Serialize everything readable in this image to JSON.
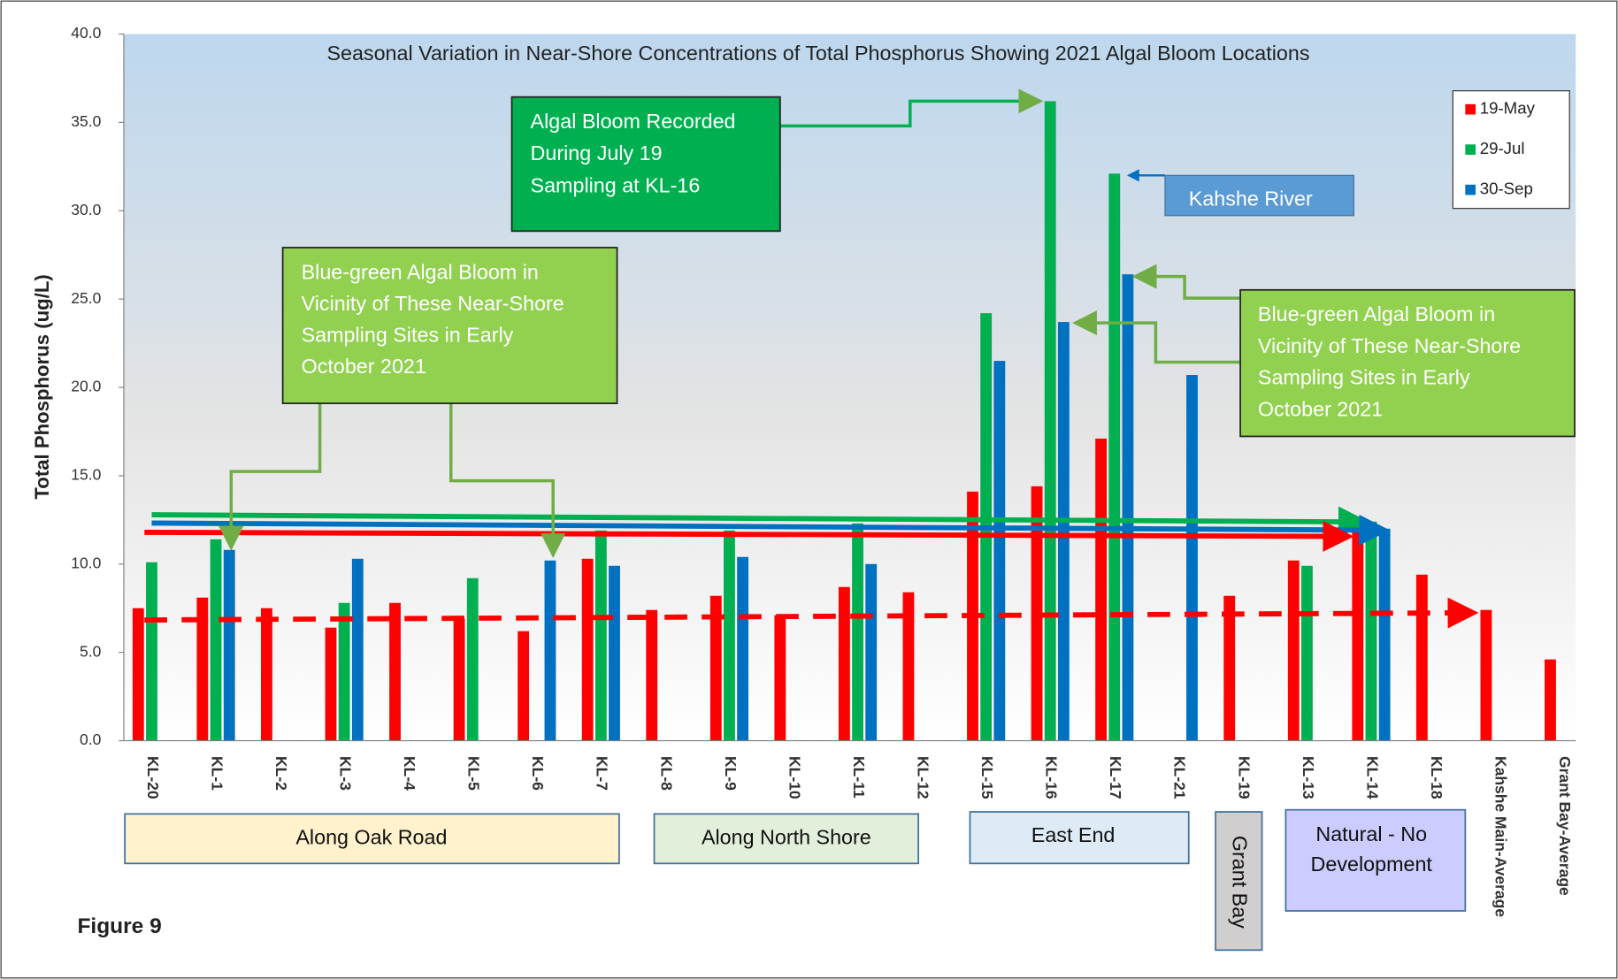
{
  "chart_data": {
    "type": "bar",
    "title": "Seasonal Variation in Near-Shore Concentrations of Total Phosphorus Showing 2021 Algal Bloom Locations",
    "y_label": "Total  Phosphorus (ug/L)",
    "categories": [
      "KL-20",
      "KL-1",
      "KL-2",
      "KL-3",
      "KL-4",
      "KL-5",
      "KL-6",
      "KL-7",
      "KL-8",
      "KL-9",
      "KL-10",
      "KL-11",
      "KL-12",
      "KL-15",
      "KL-16",
      "KL-17",
      "KL-21",
      "KL-19",
      "KL-13",
      "KL-14",
      "KL-18",
      "Kahshe Main-Average",
      "Grant Bay-Average"
    ],
    "series": [
      {
        "name": "19-May",
        "color": "#ff0000",
        "values": [
          7.5,
          8.1,
          7.5,
          6.4,
          7.8,
          6.9,
          6.2,
          10.3,
          7.4,
          8.2,
          7.1,
          8.7,
          8.4,
          14.1,
          14.4,
          17.1,
          null,
          8.2,
          10.2,
          11.9,
          9.4,
          7.4,
          4.6
        ]
      },
      {
        "name": "29-Jul",
        "color": "#00b050",
        "values": [
          10.1,
          11.4,
          null,
          7.8,
          null,
          9.2,
          null,
          11.9,
          null,
          11.9,
          null,
          12.3,
          null,
          24.2,
          36.2,
          32.1,
          null,
          null,
          9.9,
          12.4,
          null,
          null,
          null
        ]
      },
      {
        "name": "30-Sep",
        "color": "#0070c0",
        "values": [
          null,
          10.8,
          null,
          10.3,
          null,
          null,
          10.2,
          9.9,
          null,
          10.4,
          null,
          10.0,
          null,
          21.5,
          23.7,
          26.4,
          20.7,
          null,
          null,
          12.0,
          null,
          null,
          null
        ]
      }
    ],
    "ylim": [
      0,
      40
    ],
    "yticks": [
      {
        "value": 0,
        "label": "0.0"
      },
      {
        "value": 5,
        "label": "5.0"
      },
      {
        "value": 10,
        "label": "10.0"
      },
      {
        "value": 15,
        "label": "15.0"
      },
      {
        "value": 20,
        "label": "20.0"
      },
      {
        "value": 25,
        "label": "25.0"
      },
      {
        "value": 30,
        "label": "30.0"
      },
      {
        "value": 35,
        "label": "35.0"
      },
      {
        "value": 40,
        "label": "40.0"
      }
    ],
    "legend": "upper right",
    "annotations": [
      [
        "Algal Bloom Recorded",
        "During July 19",
        "Sampling at KL-16"
      ],
      [
        "Blue-green Algal Bloom in",
        "Vicinity of These Near-Shore",
        "Sampling Sites in Early",
        "October 2021"
      ],
      [
        "Kahshe River"
      ],
      [
        "Blue-green Algal Bloom in",
        "Vicinity of These Near-Shore",
        "Sampling Sites in Early",
        "October 2021"
      ]
    ],
    "groups": [
      [
        "Along Oak Road"
      ],
      [
        "Along North Shore"
      ],
      [
        "East End"
      ],
      [
        "Grant Bay"
      ],
      [
        "Natural - No",
        "Development"
      ]
    ],
    "figure_label": "Figure 9"
  }
}
